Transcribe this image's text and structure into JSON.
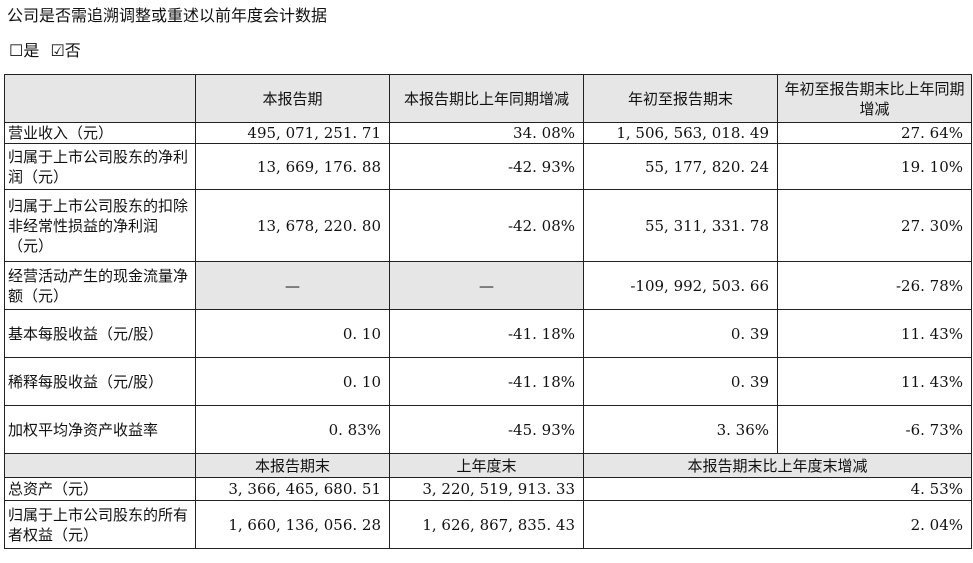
{
  "heading": "公司是否需追溯调整或重述以前年度会计数据",
  "options": {
    "yes": "☐是",
    "no": "☑否"
  },
  "header": {
    "col1": "本报告期",
    "col2": "本报告期比上年同期增减",
    "col3": "年初至报告期末",
    "col4": "年初至报告期末比上年同期增减"
  },
  "rows": [
    {
      "label": "营业收入（元）",
      "c1": "495, 071, 251. 71",
      "c2": "34. 08%",
      "c3": "1, 506, 563, 018. 49",
      "c4": "27. 64%"
    },
    {
      "label": "归属于上市公司股东的净利润（元）",
      "c1": "13, 669, 176. 88",
      "c2": "-42. 93%",
      "c3": "55, 177, 820. 24",
      "c4": "19. 10%"
    },
    {
      "label": "归属于上市公司股东的扣除非经常性损益的净利润（元）",
      "c1": "13, 678, 220. 80",
      "c2": "-42. 08%",
      "c3": "55, 311, 331. 78",
      "c4": "27. 30%"
    },
    {
      "label": "经营活动产生的现金流量净额（元）",
      "c1": "—",
      "c2": "—",
      "c3": "-109, 992, 503. 66",
      "c4": "-26. 78%"
    },
    {
      "label": "基本每股收益（元/股）",
      "c1": "0. 10",
      "c2": "-41. 18%",
      "c3": "0. 39",
      "c4": "11. 43%"
    },
    {
      "label": "稀释每股收益（元/股）",
      "c1": "0. 10",
      "c2": "-41. 18%",
      "c3": "0. 39",
      "c4": "11. 43%"
    },
    {
      "label": "加权平均净资产收益率",
      "c1": "0. 83%",
      "c2": "-45. 93%",
      "c3": "3. 36%",
      "c4": "-6. 73%"
    }
  ],
  "subheader": {
    "col1": "本报告期末",
    "col2": "上年度末",
    "col3": "本报告期末比上年度末增减"
  },
  "rows2": [
    {
      "label": "总资产（元）",
      "c1": "3, 366, 465, 680. 51",
      "c2": "3, 220, 519, 913. 33",
      "c3": "4. 53%"
    },
    {
      "label": "归属于上市公司股东的所有者权益（元）",
      "c1": "1, 660, 136, 056. 28",
      "c2": "1, 626, 867, 835. 43",
      "c3": "2. 04%"
    }
  ]
}
